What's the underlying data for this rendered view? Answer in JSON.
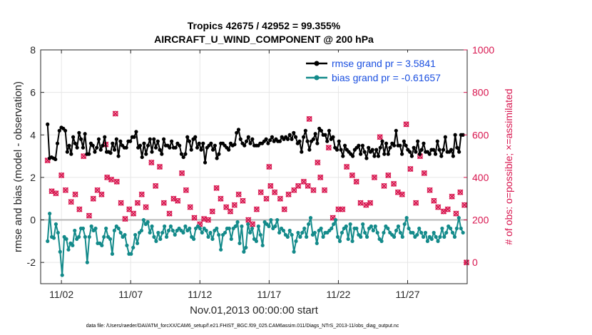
{
  "chart_data": {
    "type": "line",
    "title_line1": "Tropics 42675 / 42952 = 99.355%",
    "title_line2": "AIRCRAFT_U_WIND_COMPONENT @ 200 hPa",
    "xlabel": "Nov.01,2013 00:00:00 start",
    "ylabel_left": "rmse and bias (model - observation)",
    "ylabel_right": "# of obs: o=possible; ×=assimilated",
    "xlim": [
      0.5,
      31.3
    ],
    "ylim_left": [
      -3,
      8
    ],
    "ylim_right": [
      -100,
      1000
    ],
    "x_ticks": [
      2,
      7,
      12,
      17,
      22,
      27
    ],
    "x_tick_labels": [
      "11/02",
      "11/07",
      "11/12",
      "11/17",
      "11/22",
      "11/27"
    ],
    "y_left_ticks": [
      -2,
      0,
      2,
      4,
      6,
      8
    ],
    "y_left_tick_labels": [
      "-2",
      "0",
      "2",
      "4",
      "6",
      "8"
    ],
    "y_right_ticks": [
      0,
      200,
      400,
      600,
      800,
      1000
    ],
    "y_right_tick_labels": [
      "0",
      "200",
      "400",
      "600",
      "800",
      "1000"
    ],
    "zero_line": 0,
    "legend_position": "top-right",
    "series": [
      {
        "name": "rmse grand pr = 3.5841",
        "color": "#000000",
        "axis": "left",
        "values": [
          4.5,
          2.9,
          2.95,
          2.9,
          2.85,
          3.6,
          4.2,
          4.35,
          4.3,
          4.2,
          3.2,
          3.5,
          3.1,
          3.9,
          3.6,
          3.4,
          4.1,
          3.8,
          3.4,
          4.05,
          3.1,
          3.1,
          3.6,
          3.5,
          3.2,
          3.4,
          3.8,
          3.3,
          3.5,
          3.9,
          3.2,
          3.2,
          3.15,
          3.6,
          3.3,
          3.8,
          3.0,
          3.7,
          3.5,
          3.4,
          3.4,
          3.7,
          3.7,
          3.9,
          3.9,
          4.15,
          3.4,
          3.5,
          2.95,
          3.6,
          3.1,
          3.5,
          3.8,
          3.2,
          3.8,
          3.4,
          3.7,
          3.3,
          3.1,
          3.8,
          3.5,
          3.5,
          3.4,
          3.7,
          3.4,
          3.4,
          3.6,
          3.5,
          3.1,
          2.95,
          3.1,
          3.9,
          3.7,
          3.3,
          3.8,
          3.9,
          3.4,
          3.6,
          3.3,
          3.6,
          2.7,
          3.4,
          3.5,
          3.6,
          3.3,
          3.5,
          2.9,
          3.1,
          3.6,
          3.6,
          3.5,
          3.4,
          3.3,
          3.6,
          3.5,
          3.55,
          4.1,
          4.25,
          3.8,
          3.6,
          3.5,
          3.7,
          3.9,
          3.6,
          3.8,
          3.5,
          3.5,
          3.5,
          3.6,
          3.6,
          3.7,
          3.8,
          3.6,
          3.75,
          3.9,
          3.7,
          3.8,
          3.7,
          3.7,
          3.9,
          3.8,
          3.9,
          3.8,
          4.0,
          3.8,
          4.1,
          3.9,
          3.6,
          3.7,
          3.2,
          3.9,
          4.2,
          3.7,
          3.3,
          3.7,
          3.8,
          4.05,
          3.6,
          4.3,
          4.2,
          4.0,
          4.0,
          3.7,
          4.2,
          3.8,
          3.9,
          3.4,
          3.3,
          3.7,
          3.3,
          3.0,
          3.5,
          3.3,
          3.2,
          3.1,
          3.0,
          3.3,
          3.4,
          3.5,
          3.1,
          3.5,
          3.2,
          2.9,
          3.4,
          3.2,
          3.3,
          3.0,
          3.3,
          3.0,
          3.4,
          3.7,
          3.1,
          3.6,
          3.1,
          3.4,
          3.6,
          3.5,
          4.2,
          3.5,
          3.5,
          3.1,
          3.7,
          3.5,
          3.3,
          3.2,
          3.0,
          3.4,
          3.2,
          3.7,
          3.1,
          3.3,
          3.6,
          3.2,
          3.2,
          3.1,
          3.3,
          3.3,
          3.1,
          3.7,
          3.3,
          3.0,
          3.3,
          3.9,
          3.2,
          3.2,
          3.3,
          3.0,
          4.0,
          3.4,
          3.2,
          4.0,
          4.0
        ]
      },
      {
        "name": "bias grand pr = -0.61657",
        "color": "#138a8a",
        "axis": "left",
        "values": [
          -1.0,
          0.3,
          -0.8,
          -0.85,
          -0.2,
          -0.6,
          -1.5,
          -2.6,
          -0.8,
          -0.9,
          -1.4,
          -1.1,
          -1.2,
          -0.5,
          -0.9,
          -0.8,
          -0.4,
          -0.4,
          -0.8,
          -2.0,
          -0.8,
          -0.3,
          -0.5,
          -0.4,
          -1.1,
          -1.1,
          -1.2,
          -0.8,
          -0.4,
          -0.8,
          -0.9,
          -1.6,
          -0.5,
          -0.3,
          -0.4,
          -0.6,
          -0.8,
          -0.7,
          -1.2,
          -1.6,
          -1.6,
          -1.3,
          -0.7,
          -1.1,
          -0.6,
          -0.5,
          0.0,
          -0.2,
          -0.1,
          -0.6,
          -0.3,
          -0.8,
          -1.0,
          -0.6,
          -0.9,
          -0.6,
          -0.3,
          -0.8,
          -0.5,
          -0.3,
          -0.5,
          -0.7,
          -0.5,
          -0.4,
          -0.5,
          -0.6,
          -0.3,
          -0.5,
          -0.4,
          -0.8,
          -0.9,
          -0.4,
          -0.3,
          -0.4,
          -0.6,
          -0.4,
          -0.5,
          -0.8,
          -0.6,
          -0.9,
          -0.5,
          -0.4,
          -0.7,
          -1.4,
          -0.7,
          -0.6,
          -0.4,
          -0.4,
          -0.9,
          -0.4,
          -0.3,
          -0.1,
          -1.1,
          -0.3,
          -1.5,
          -1.3,
          -0.2,
          -0.6,
          -0.4,
          -0.9,
          -1.0,
          -0.3,
          -0.7,
          -1.2,
          -0.1,
          -0.2,
          -0.3,
          0.0,
          -0.4,
          -0.3,
          0.0,
          -0.6,
          -0.4,
          -0.5,
          -0.7,
          -0.8,
          -0.5,
          -0.7,
          -1.5,
          -1.0,
          -0.6,
          -0.8,
          -0.6,
          -0.4,
          -0.8,
          -0.2,
          0.1,
          -0.7,
          -0.6,
          -1.1,
          -0.5,
          -0.4,
          -0.8,
          -0.6,
          -0.6,
          -0.5,
          -0.4,
          -0.2,
          0.0,
          -0.8,
          -1.0,
          -0.6,
          -0.4,
          -0.3,
          -0.9,
          -0.2,
          -1.0,
          -0.4,
          -0.4,
          -0.7,
          -0.8,
          -0.2,
          -0.6,
          -0.8,
          -0.4,
          -0.3,
          -0.5,
          -0.3,
          -0.6,
          -0.9,
          -1.0,
          -0.6,
          -0.3,
          -0.4,
          -0.6,
          -0.7,
          -0.8,
          -0.5,
          -0.3,
          -0.6,
          -0.8,
          -0.2,
          0.1,
          -0.4,
          -0.6,
          -0.6,
          -0.8,
          -0.7,
          -0.4,
          -0.6,
          -0.8,
          -0.6,
          -1.0,
          -0.8,
          -0.9,
          -0.6,
          -0.8,
          -1.0,
          -0.8,
          -0.4,
          -0.8,
          -0.6,
          -0.3,
          -0.4,
          -0.6,
          -0.8,
          -0.4,
          0.1,
          -0.4,
          -0.6
        ]
      }
    ],
    "obs_points": [
      {
        "x": 1.0,
        "y": 480
      },
      {
        "x": 1.3,
        "y": 335
      },
      {
        "x": 1.6,
        "y": 325
      },
      {
        "x": 2.0,
        "y": 410
      },
      {
        "x": 2.3,
        "y": 340
      },
      {
        "x": 2.7,
        "y": 285
      },
      {
        "x": 3.0,
        "y": 320
      },
      {
        "x": 3.3,
        "y": 250
      },
      {
        "x": 3.6,
        "y": 500
      },
      {
        "x": 4.0,
        "y": 220
      },
      {
        "x": 4.3,
        "y": 300
      },
      {
        "x": 4.6,
        "y": 340
      },
      {
        "x": 4.9,
        "y": 320
      },
      {
        "x": 5.3,
        "y": 400
      },
      {
        "x": 5.6,
        "y": 390
      },
      {
        "x": 6.0,
        "y": 380
      },
      {
        "x": 6.3,
        "y": 280
      },
      {
        "x": 6.6,
        "y": 205
      },
      {
        "x": 6.9,
        "y": 250
      },
      {
        "x": 7.2,
        "y": 230
      },
      {
        "x": 7.5,
        "y": 280
      },
      {
        "x": 7.8,
        "y": 320
      },
      {
        "x": 5.9,
        "y": 700
      },
      {
        "x": 5.2,
        "y": 555
      },
      {
        "x": 8.1,
        "y": 260
      },
      {
        "x": 8.5,
        "y": 470
      },
      {
        "x": 8.8,
        "y": 360
      },
      {
        "x": 9.1,
        "y": 450
      },
      {
        "x": 9.4,
        "y": 280
      },
      {
        "x": 9.8,
        "y": 230
      },
      {
        "x": 10.1,
        "y": 300
      },
      {
        "x": 10.4,
        "y": 290
      },
      {
        "x": 10.7,
        "y": 420
      },
      {
        "x": 11.0,
        "y": 340
      },
      {
        "x": 11.3,
        "y": 260
      },
      {
        "x": 11.6,
        "y": 210
      },
      {
        "x": 12.0,
        "y": 180
      },
      {
        "x": 12.3,
        "y": 205
      },
      {
        "x": 12.6,
        "y": 200
      },
      {
        "x": 12.9,
        "y": 240
      },
      {
        "x": 13.2,
        "y": 350
      },
      {
        "x": 13.5,
        "y": 300
      },
      {
        "x": 13.9,
        "y": 260
      },
      {
        "x": 14.2,
        "y": 240
      },
      {
        "x": 14.5,
        "y": 270
      },
      {
        "x": 14.8,
        "y": 320
      },
      {
        "x": 15.1,
        "y": 290
      },
      {
        "x": 15.5,
        "y": 200
      },
      {
        "x": 15.8,
        "y": 180
      },
      {
        "x": 16.1,
        "y": 250
      },
      {
        "x": 16.4,
        "y": 330
      },
      {
        "x": 16.8,
        "y": 300
      },
      {
        "x": 17.1,
        "y": 360
      },
      {
        "x": 17.4,
        "y": 330
      },
      {
        "x": 17.0,
        "y": 450
      },
      {
        "x": 17.8,
        "y": 300
      },
      {
        "x": 18.1,
        "y": 250
      },
      {
        "x": 18.4,
        "y": 320
      },
      {
        "x": 18.8,
        "y": 340
      },
      {
        "x": 19.1,
        "y": 360
      },
      {
        "x": 19.5,
        "y": 380
      },
      {
        "x": 19.8,
        "y": 360
      },
      {
        "x": 20.2,
        "y": 340
      },
      {
        "x": 20.5,
        "y": 470
      },
      {
        "x": 19.9,
        "y": 675
      },
      {
        "x": 20.7,
        "y": 400
      },
      {
        "x": 21.0,
        "y": 340
      },
      {
        "x": 21.3,
        "y": 540
      },
      {
        "x": 21.6,
        "y": 210
      },
      {
        "x": 22.0,
        "y": 250
      },
      {
        "x": 22.3,
        "y": 250
      },
      {
        "x": 22.6,
        "y": 450
      },
      {
        "x": 23.0,
        "y": 410
      },
      {
        "x": 23.3,
        "y": 380
      },
      {
        "x": 23.6,
        "y": 280
      },
      {
        "x": 24.0,
        "y": 270
      },
      {
        "x": 24.3,
        "y": 280
      },
      {
        "x": 24.6,
        "y": 400
      },
      {
        "x": 25.0,
        "y": 590
      },
      {
        "x": 25.3,
        "y": 360
      },
      {
        "x": 25.6,
        "y": 410
      },
      {
        "x": 26.0,
        "y": 370
      },
      {
        "x": 26.3,
        "y": 330
      },
      {
        "x": 26.6,
        "y": 320
      },
      {
        "x": 26.9,
        "y": 650
      },
      {
        "x": 27.2,
        "y": 440
      },
      {
        "x": 27.6,
        "y": 280
      },
      {
        "x": 27.9,
        "y": 500
      },
      {
        "x": 28.2,
        "y": 420
      },
      {
        "x": 28.6,
        "y": 340
      },
      {
        "x": 28.9,
        "y": 290
      },
      {
        "x": 29.2,
        "y": 260
      },
      {
        "x": 29.6,
        "y": 240
      },
      {
        "x": 29.9,
        "y": 250
      },
      {
        "x": 30.2,
        "y": 310
      },
      {
        "x": 30.5,
        "y": 230
      },
      {
        "x": 30.8,
        "y": 330
      },
      {
        "x": 31.1,
        "y": 270
      },
      {
        "x": 31.25,
        "y": 0
      }
    ],
    "footer": "data file: /Users/raeder/DAI/ATM_forcXX/CAM6_setup/f.e21.FHIST_BGC.f09_025.CAM6assim.011/Diags_NTrS_2013-11/obs_diag_output.nc"
  },
  "colors": {
    "rmse": "#000000",
    "bias": "#138a8a",
    "obs": "#d8164f",
    "legend_text": "#1a4fe0",
    "grid": "#e6e6e6",
    "zero_line": "#b5b5b5"
  }
}
